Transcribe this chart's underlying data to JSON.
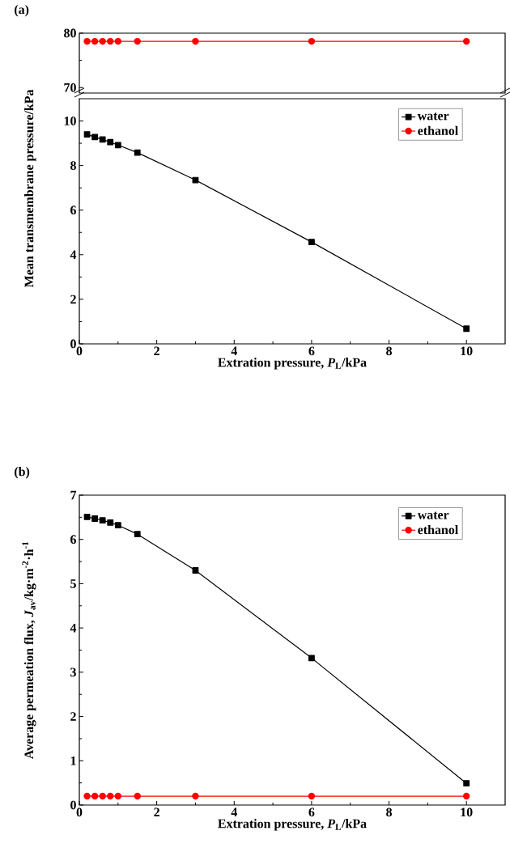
{
  "chart_data": [
    {
      "type": "line",
      "title": "(a)",
      "x": [
        0.2,
        0.4,
        0.6,
        0.8,
        1.0,
        1.5,
        3,
        6,
        10
      ],
      "xlim": [
        0,
        11
      ],
      "ylim": [
        69,
        80
      ],
      "yticks": [
        70,
        80
      ],
      "tick_labels": "y",
      "series": [
        {
          "color": "#ff0000",
          "marker": "circle",
          "values": [
            78.5,
            78.5,
            78.5,
            78.5,
            78.5,
            78.5,
            78.5,
            78.5,
            78.5
          ]
        }
      ]
    },
    {
      "type": "line",
      "x": [
        0.2,
        0.4,
        0.6,
        0.8,
        1.0,
        1.5,
        3,
        6,
        10
      ],
      "xlabel": "Extration pressure, *P*$_{L}$/kPa",
      "ylabel": "Mean transmembrane pressure/kPa",
      "xlim": [
        0,
        11
      ],
      "xticks": [
        0,
        2,
        4,
        6,
        8,
        10
      ],
      "ylim": [
        0,
        11
      ],
      "yticks": [
        0,
        2,
        4,
        6,
        8,
        10
      ],
      "legend": "top right",
      "series": [
        {
          "name": "water",
          "color": "#000000",
          "marker": "square",
          "values": [
            9.4,
            9.28,
            9.17,
            9.05,
            8.92,
            8.58,
            7.35,
            4.57,
            0.68
          ]
        },
        {
          "name": "ethanol",
          "color": "#ff0000",
          "marker": "circle",
          "values": [
            null,
            null,
            null,
            null,
            null,
            null,
            null,
            null,
            null
          ]
        }
      ]
    },
    {
      "type": "line",
      "title": "(b)",
      "x": [
        0.2,
        0.4,
        0.6,
        0.8,
        1.0,
        1.5,
        3,
        6,
        10
      ],
      "xlabel": "Extration pressure, *P*$_{L}$/kPa",
      "ylabel": "Average permeation flux, *J*$_{av}$/kg·m$^{-2}$·h$^{-1}$",
      "xlim": [
        0,
        11
      ],
      "xticks": [
        0,
        2,
        4,
        6,
        8,
        10
      ],
      "ylim": [
        0,
        7
      ],
      "yticks": [
        0,
        1,
        2,
        3,
        4,
        5,
        6,
        7
      ],
      "legend": "top right",
      "series": [
        {
          "name": "water",
          "color": "#000000",
          "marker": "square",
          "values": [
            6.51,
            6.47,
            6.43,
            6.38,
            6.32,
            6.12,
            5.3,
            3.32,
            0.49
          ]
        },
        {
          "name": "ethanol",
          "color": "#ff0000",
          "marker": "circle",
          "values": [
            0.2,
            0.2,
            0.2,
            0.2,
            0.2,
            0.2,
            0.2,
            0.2,
            0.2
          ]
        }
      ]
    }
  ]
}
